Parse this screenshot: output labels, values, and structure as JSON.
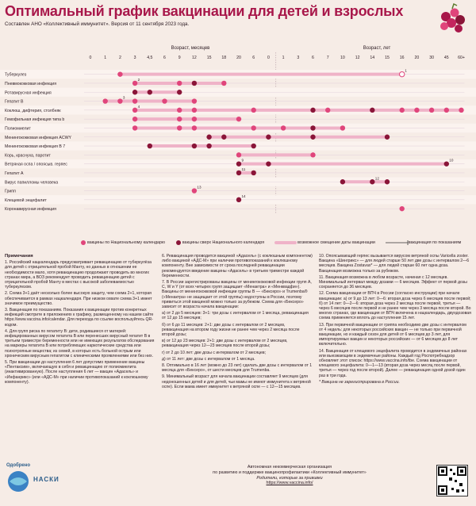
{
  "header": {
    "title": "Оптимальный график вакцинации для детей и взрослых",
    "subtitle": "Составлен АНО «Коллективный иммунитет». Версия от 11 сентября 2023 года."
  },
  "colors": {
    "national": "#e0457b",
    "extra": "#8a1538",
    "shift": "#efb3c8",
    "line": "#7a5566"
  },
  "chart_data": {
    "type": "table",
    "months_axis_title": "Возраст, месяцев",
    "years_axis_title": "Возраст, лет",
    "month_ticks": [
      "0",
      "1",
      "2",
      "3",
      "4,5",
      "6",
      "9",
      "12",
      "15",
      "18",
      "20",
      "6",
      "0"
    ],
    "year_ticks": [
      "1",
      "3",
      "6",
      "7",
      "10",
      "12",
      "14",
      "15",
      "16",
      "20",
      "30",
      "45",
      "60+"
    ],
    "rows": [
      {
        "name": "Туберкулез",
        "doses": [
          {
            "col": 2,
            "kind": "national"
          },
          {
            "col": 21,
            "kind": "outline",
            "sup": "1"
          }
        ]
      },
      {
        "name": "Пневмококковая инфекция",
        "doses": [
          {
            "col": 3,
            "kind": "national",
            "sup": "2"
          },
          {
            "col": 6,
            "kind": "national"
          },
          {
            "col": 7,
            "kind": "extra"
          },
          {
            "col": 9,
            "kind": "national"
          }
        ]
      },
      {
        "name": "Ротавирусная инфекция",
        "doses": [
          {
            "col": 3,
            "kind": "extra"
          },
          {
            "col": 4,
            "kind": "extra"
          },
          {
            "col": 6,
            "kind": "extra"
          }
        ]
      },
      {
        "name": "Гепатит В",
        "doses": [
          {
            "col": 1,
            "kind": "national"
          },
          {
            "col": 2,
            "kind": "national",
            "sup": "3"
          },
          {
            "col": 3,
            "kind": "national"
          },
          {
            "col": 5,
            "kind": "national"
          },
          {
            "col": 7,
            "kind": "national"
          }
        ]
      },
      {
        "name": "Коклюш, дифтерия, столбняк",
        "doses": [
          {
            "col": 3,
            "kind": "national",
            "sup": "4"
          },
          {
            "col": 6,
            "kind": "national"
          },
          {
            "col": 7,
            "kind": "national"
          },
          {
            "col": 11,
            "kind": "national"
          },
          {
            "col": 15,
            "kind": "extra"
          },
          {
            "col": 16,
            "kind": "national"
          },
          {
            "col": 19,
            "kind": "extra"
          },
          {
            "col": 21,
            "kind": "national"
          },
          {
            "col": 22,
            "kind": "national"
          },
          {
            "col": 23,
            "kind": "national"
          },
          {
            "col": 24,
            "kind": "national"
          },
          {
            "col": 25,
            "kind": "national"
          }
        ]
      },
      {
        "name": "Гемофильная инфекция типа b",
        "doses": [
          {
            "col": 3,
            "kind": "national"
          },
          {
            "col": 6,
            "kind": "national"
          },
          {
            "col": 7,
            "kind": "national"
          },
          {
            "col": 10,
            "kind": "national"
          }
        ]
      },
      {
        "name": "Полиомиелит",
        "doses": [
          {
            "col": 3,
            "kind": "national"
          },
          {
            "col": 6,
            "kind": "national"
          },
          {
            "col": 7,
            "kind": "national"
          },
          {
            "col": 11,
            "kind": "national"
          },
          {
            "col": 13,
            "kind": "national"
          },
          {
            "col": 15,
            "kind": "extra"
          },
          {
            "col": 17,
            "kind": "national"
          }
        ]
      },
      {
        "name": "Менингококковая инфекция ACWY",
        "doses": [
          {
            "col": 8,
            "kind": "extra"
          },
          {
            "col": 9,
            "kind": "extra"
          },
          {
            "col": 12,
            "kind": "extra"
          },
          {
            "col": 15,
            "kind": "extra"
          },
          {
            "col": 20,
            "kind": "extra"
          }
        ]
      },
      {
        "name": "Менингококковая инфекция B",
        "sup": "7",
        "doses": [
          {
            "col": 4,
            "kind": "extra"
          },
          {
            "col": 7,
            "kind": "extra"
          },
          {
            "col": 8,
            "kind": "extra"
          },
          {
            "col": 11,
            "kind": "extra"
          }
        ]
      },
      {
        "name": "Корь, краснуха, паротит",
        "doses": [
          {
            "col": 10,
            "kind": "national"
          },
          {
            "col": 15,
            "kind": "national"
          }
        ]
      },
      {
        "name": "Ветряная оспа / опоясыв. герпес",
        "doses": [
          {
            "col": 10,
            "kind": "extra",
            "label": "9"
          },
          {
            "col": 12,
            "kind": "extra"
          },
          {
            "col": 24,
            "kind": "extra",
            "label": "10"
          }
        ]
      },
      {
        "name": "Гепатит А",
        "doses": [
          {
            "col": 10,
            "kind": "extra",
            "label": "11"
          },
          {
            "col": 11,
            "kind": "extra"
          }
        ]
      },
      {
        "name": "Вирус папилломы человека",
        "doses": [
          {
            "col": 17,
            "kind": "extra"
          },
          {
            "col": 19,
            "kind": "extra",
            "label": "12"
          },
          {
            "col": 20,
            "kind": "extra"
          }
        ]
      },
      {
        "name": "Грипп",
        "doses": [
          {
            "col": 7,
            "kind": "national",
            "label": "13"
          }
        ]
      },
      {
        "name": "Клещевой энцефалит",
        "doses": [
          {
            "col": 10,
            "kind": "extra",
            "label": "14"
          }
        ]
      },
      {
        "name": "Коронавирусная инфекция",
        "doses": [
          {
            "col": 21,
            "kind": "national"
          }
        ]
      }
    ]
  },
  "legend": {
    "national": "вакцины по Национальному календарю",
    "extra": "вакцины сверх Национального календаря",
    "shift": "возможное смещение даты вакцинации",
    "booster": "вакцинация по показаниям"
  },
  "notes": {
    "title": "Примечания",
    "col1": [
      "1. Российский нацкалендарь предусматривает ревакцинацию от туберкулёза для детей с отрицательной пробой Манту, но данных в отношении ее необходимости мало, хотя ревакцинацию продолжают проводить во многих странах мира, а ВОЗ рекомендует проводить ревакцинацию детей с отрицательной пробой Манту в местах с высокой заболеваемостью туберкулезом.",
      "2. Схема 3+1 даёт несколько более высокую защиту, чем схема 2+1, которая обеспечивается в рамках нацкалендаря. При низком охвате схема 3+1 имеет значимое преимущество.",
      "3. Вакцинация по показаниям. Показания к вакцинации против конкретных инфекций смотрите в приложениях к графику, размещенному на нашем сайте https://www.vaccina.info/calendar. Для перехода по ссылке воспользуйтесь QR-кодом.",
      "4. Для групп риска по гепатиту В: дети, родившиеся от матерей: инфицированных вирусом гепатита В или перенесших вирусный гепатит В в третьем триместре беременности или не имеющих результатов обследования на маркеры гепатита В или потребляющих наркотические средства или психотропные вещества; из семей, в которых есть больной острым или хроническим вирусным гепатитом с клиническими проявлениями или без них.",
      "5. При вакцинации до наступления 6 лет допустимо применение вакцины «Пентаксим», включающую в себя и ревакцинацию от полиомиелита (инактивированную). После наступления 6 лет — вакцин «Адасель» и «Инфанрикс» (или «АДС-М» при наличии противопоказаний к коклюшному компоненту)."
    ],
    "col2": [
      "6. Ревакцинация проводится вакциной «Адасель» (с коклюшным компонентом) либо вакциной «АДС-М» при наличии противопоказаний к коклюшному компоненту. Вне зависимости от срока последней ревакцинации рекомендуется введение вакцины «Адасель» в третьем триместре каждой беременности.",
      "7. В России зарегистрированы вакцины от менингококковой инфекции групп A, C, W и Y (от всех четырех групп защищает «Менактра» и «Менквадфи»). Вакцины от менингококковой инфекции группы В — «Бексеро» и Trumenba® («Менактра» не защищает от этой группы) недоступны в России, поэтому привиться этой вакциной можно только за рубежом. Схема для «Бексеро» зависит от возраста начала вакцинации:",
      "а) от 2 до 5 месяцев: 3+1: три дозы с интервалом от 1 месяца, ревакцинация от 12 до 15 месяцев;",
      "б) от 6 до 11 месяцев: 2+1: две дозы с интервалом от 2 месяцев, ревакцинация на втором году жизни не ранее чем через 2 месяца после второй дозы;",
      "в) от 12 до 23 месяцев: 2+1: две дозы с интервалом от 2 месяцев, ревакцинация через 12—23 месяцев после второй дозы;",
      "г) от 2 до 10 лет: две дозы с интервалом от 2 месяцев;",
      "д) от 11 лет: две дозы с интервалом от 1 месяца.",
      "8. Оптимально в 16 лет (можно до 23 лет) сделать две дозы с интервалом от 1 месяца для «Бексеро», от шести месяцев для Trumenba.",
      "9. Минимальный возраст для начала вакцинации составляет 9 месяцев (для недоношенных детей и для детей, чьи мамы не имеют иммунитета к ветряной оспе). Если мама имеет иммунитет к ветряной оспе — с 12—15 месяцев."
    ],
    "col3": [
      "10. Опоясывающий герпес вызывается вирусом ветряной оспы Varicella zoster. Вакцина «Шингрикс» — для людей старше 50 лет две дозы с интервалом 2—6 месяцев. Вакцина Zostavax* — для людей старше 60 лет одна доза. Вакцинация возможна только за рубежом.",
      "11. Вакцинация возможна в любом возрасте, начиная с 12 месяцев. Минимальный интервал между дозами — 6 месяцев. Эффект от первой дозы сохраняется до 36 месяцев.",
      "12. Схема вакцинации от ВПЧ в России (согласно инструкции) при начале вакцинации: а) от 9 до 13 лет: 0—6: вторая доза через 6 месяцев после первой; б) от 14 лет: 0—2—6: вторая доза через 2 месяца после первой, третья — через 6 месяцев после первой и не ранее чем через 3 месяца после второй. Во многих странах, где вакцинация от ВПЧ включена в нацкалендарь, двухдозовая схема применяется вплоть до наступления 15 лет.",
      "13. При первичной вакцинации от гриппа необходимо две дозы с интервалом от 4 недель: для некоторых российских вакцин — не только при первичной вакцинации, но и каждый сезон для детей от 6 месяцев до 3 лет, для импортируемых вакцин и некоторых российских — от 6 месяцев до 8 лет включительно.",
      "14. Вакцинация от клещевого энцефалита проводится в эндемичных районах или выезжающим в эндемичные районы. Каждый год Роспотребнадзор обновляет этот список: https://www.vaccina.info/tbe. Схема вакцинации от клещевого энцефалита: 0—1—13 (вторая доза через месяц после первой, третья — через год после второй). Далее — ревакцинация одной дозой один раз в три года.",
      "* Вакцина не зарегистрирована в России."
    ]
  },
  "footer": {
    "logo_name": "Одобрено",
    "logo_caption": "НАСКИ",
    "org_line1": "Автономная некоммерческая организация",
    "org_line2": "по развитию и поддержке вакцинопрофилактики «Коллективный иммунитет»",
    "org_line3": "Родители, которые за прививки",
    "org_line4": "https://www.vaccina.info/"
  }
}
